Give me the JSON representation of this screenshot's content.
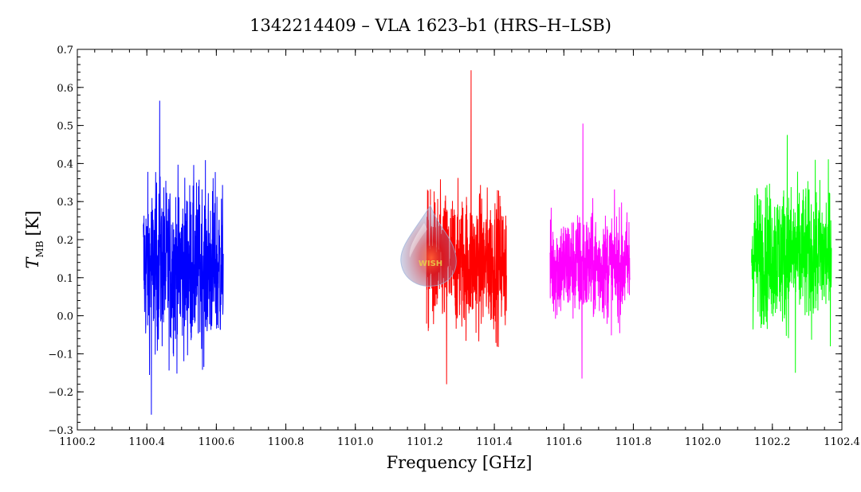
{
  "chart_data": {
    "type": "line",
    "title": "1342214409 – VLA 1623–b1 (HRS–H–LSB)",
    "xlabel": "Frequency [GHz]",
    "ylabel_main": "T",
    "ylabel_sub": "MB",
    "ylabel_unit": "[K]",
    "xlim": [
      1100.2,
      1102.4
    ],
    "ylim": [
      -0.3,
      0.7
    ],
    "xticks": [
      1100.2,
      1100.4,
      1100.6,
      1100.8,
      1101.0,
      1101.2,
      1101.4,
      1101.6,
      1101.8,
      1102.0,
      1102.2,
      1102.4
    ],
    "xtick_labels": [
      "1100.2",
      "1100.4",
      "1100.6",
      "1100.8",
      "1101.0",
      "1101.2",
      "1101.4",
      "1101.6",
      "1101.8",
      "1102.0",
      "1102.2",
      "1102.4"
    ],
    "yticks": [
      -0.3,
      -0.2,
      -0.1,
      0.0,
      0.1,
      0.2,
      0.3,
      0.4,
      0.5,
      0.6,
      0.7
    ],
    "ytick_labels": [
      "−0.3",
      "−0.2",
      "−0.1",
      "0.0",
      "0.1",
      "0.2",
      "0.3",
      "0.4",
      "0.5",
      "0.6",
      "0.7"
    ],
    "grid": false,
    "series": [
      {
        "color": "#0000ff",
        "x_range": [
          1100.39,
          1100.62
        ],
        "mean": 0.13,
        "spread": 0.11,
        "min": -0.26,
        "max": 0.565,
        "peak_x": 1100.437
      },
      {
        "color": "#ff0000",
        "x_range": [
          1101.205,
          1101.435
        ],
        "mean": 0.14,
        "spread": 0.09,
        "min": -0.18,
        "max": 0.645,
        "peak_x": 1101.333
      },
      {
        "color": "#ff00ff",
        "x_range": [
          1101.56,
          1101.79
        ],
        "mean": 0.13,
        "spread": 0.07,
        "min": -0.165,
        "max": 0.505,
        "peak_x": 1101.655
      },
      {
        "color": "#00ff00",
        "x_range": [
          1102.14,
          1102.37
        ],
        "mean": 0.16,
        "spread": 0.09,
        "min": -0.15,
        "max": 0.475,
        "peak_x": 1102.243
      }
    ]
  },
  "watermark": {
    "text": "WISH"
  }
}
